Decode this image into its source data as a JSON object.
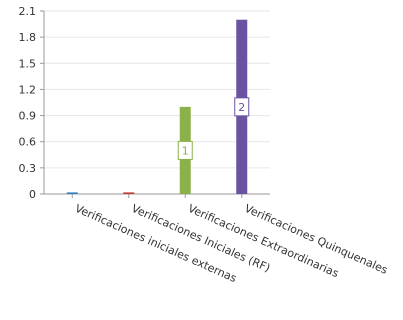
{
  "chart_data": {
    "type": "bar",
    "categories": [
      "Verificaciones iniciales externas",
      "Verificaciones Iniciales (RF)",
      "Verificaciones Extraordinarias",
      "Verificaciones Quinquenales"
    ],
    "values": [
      0,
      0,
      1,
      2
    ],
    "data_labels": [
      "",
      "",
      "1",
      "2"
    ],
    "colors": [
      "#2f7fbf",
      "#c0392b",
      "#8cb04a",
      "#6a53a0"
    ],
    "title": "",
    "xlabel": "",
    "ylabel": "",
    "ylim": [
      0,
      2.1
    ],
    "yticks": [
      "0",
      "0.3",
      "0.6",
      "0.9",
      "1.2",
      "1.5",
      "1.8",
      "2.1"
    ],
    "grid": true
  }
}
